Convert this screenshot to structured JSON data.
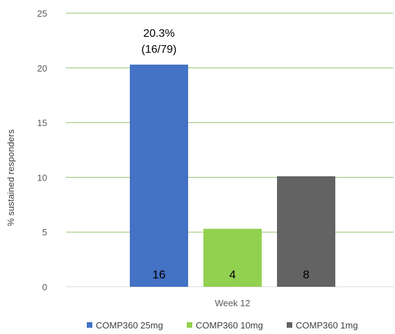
{
  "chart_data": {
    "type": "bar",
    "title": "",
    "xlabel": "",
    "ylabel": "% sustained responders",
    "categories": [
      "Week 12"
    ],
    "ylim": [
      0,
      25
    ],
    "yticks": [
      0,
      5,
      10,
      15,
      20,
      25
    ],
    "grid": true,
    "legend_position": "bottom",
    "series": [
      {
        "name": "COMP360 25mg",
        "values": [
          20.3
        ],
        "label": "16",
        "color": "#4472C4"
      },
      {
        "name": "COMP360 10mg",
        "values": [
          5.3
        ],
        "label": "4",
        "color": "#92D050"
      },
      {
        "name": "COMP360 1mg",
        "values": [
          10.1
        ],
        "label": "8",
        "color": "#636363"
      }
    ],
    "annotations": [
      {
        "series": 0,
        "lines": [
          "20.3%",
          "(16/79)"
        ]
      }
    ],
    "gridline_color": "#92C36F"
  }
}
